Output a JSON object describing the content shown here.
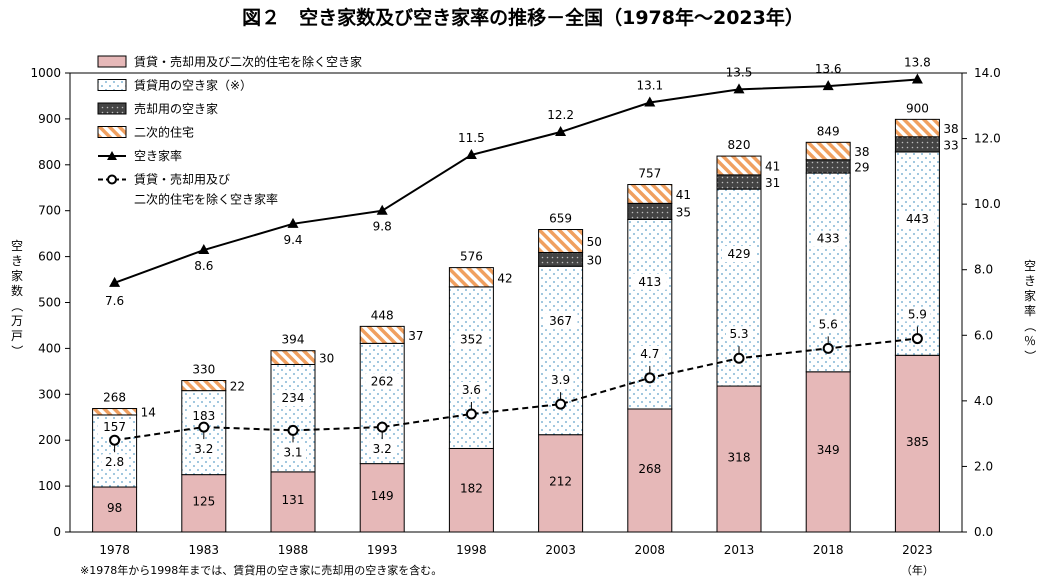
{
  "chart_data": {
    "type": "bar",
    "title": "図２　空き家数及び空き家率の推移－全国（1978年～2023年）",
    "footnote": "※1978年から1998年までは、賃貸用の空き家に売却用の空き家を含む。",
    "xlabel_unit": "（年）",
    "ylabel_left": "空き家数（万戸）",
    "ylabel_right": "空き家率（％）",
    "ylim_left": [
      0,
      1000
    ],
    "ylim_right": [
      0.0,
      14.0
    ],
    "yticks_left": [
      "0",
      "100",
      "200",
      "300",
      "400",
      "500",
      "600",
      "700",
      "800",
      "900",
      "1000"
    ],
    "yticks_right": [
      "0.0",
      "2.0",
      "4.0",
      "6.0",
      "8.0",
      "10.0",
      "12.0",
      "14.0"
    ],
    "categories": [
      "1978",
      "1983",
      "1988",
      "1993",
      "1998",
      "2003",
      "2008",
      "2013",
      "2018",
      "2023"
    ],
    "totals": [
      268,
      330,
      394,
      448,
      576,
      659,
      757,
      820,
      849,
      900
    ],
    "series": [
      {
        "name": "賃貸・売却用及び二次的住宅を除く空き家",
        "kind": "bar",
        "fill": "#e6b8b8",
        "values": [
          98,
          125,
          131,
          149,
          182,
          212,
          268,
          318,
          349,
          385
        ]
      },
      {
        "name": "賃貸用の空き家（※）",
        "kind": "bar",
        "fill": "dots-light",
        "values": [
          157,
          183,
          234,
          262,
          352,
          367,
          413,
          429,
          433,
          443
        ]
      },
      {
        "name": "売却用の空き家",
        "kind": "bar",
        "fill": "dots-dark",
        "values": [
          null,
          null,
          null,
          null,
          null,
          30,
          35,
          31,
          29,
          33
        ]
      },
      {
        "name": "二次的住宅",
        "kind": "bar",
        "fill": "stripes-orange",
        "values": [
          14,
          22,
          30,
          37,
          42,
          50,
          41,
          41,
          38,
          38
        ]
      },
      {
        "name": "空き家率",
        "kind": "line",
        "axis": "right",
        "values": [
          7.6,
          8.6,
          9.4,
          9.8,
          11.5,
          12.2,
          13.1,
          13.5,
          13.6,
          13.8
        ],
        "labels": [
          "7.6",
          "8.6",
          "9.4",
          "9.8",
          "11.5",
          "12.2",
          "13.1",
          "13.5",
          "13.6",
          "13.8"
        ]
      },
      {
        "name": "賃貸・売却用及び二次的住宅を除く空き家率",
        "kind": "line",
        "axis": "right",
        "legend_lines": [
          "賃貸・売却用及び",
          "二次的住宅を除く空き家率"
        ],
        "values": [
          2.8,
          3.2,
          3.1,
          3.2,
          3.6,
          3.9,
          4.7,
          5.3,
          5.6,
          5.9
        ],
        "labels": [
          "2.8",
          "3.2",
          "3.1",
          "3.2",
          "3.6",
          "3.9",
          "4.7",
          "5.3",
          "5.6",
          "5.9"
        ]
      }
    ],
    "legend_position": "top-left",
    "grid": false
  }
}
